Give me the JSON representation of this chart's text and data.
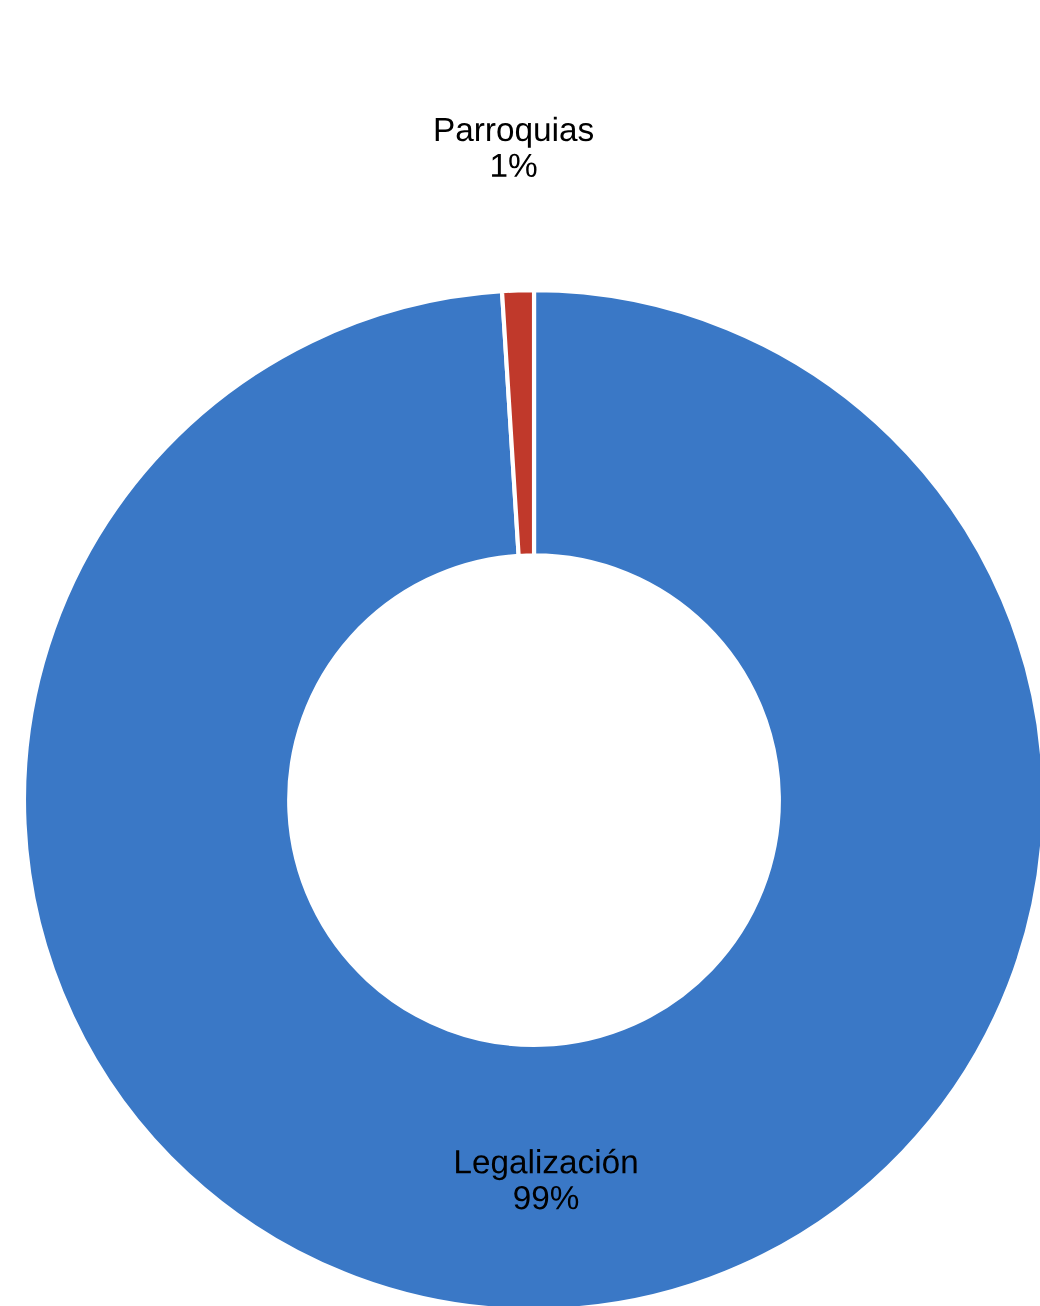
{
  "chart_data": {
    "type": "donut",
    "categories": [
      "Legalización",
      "Parroquias"
    ],
    "values": [
      99,
      1
    ],
    "value_labels": [
      "99%",
      "1%"
    ],
    "colors": [
      "#3a78c6",
      "#c0392b"
    ],
    "legend": false
  }
}
